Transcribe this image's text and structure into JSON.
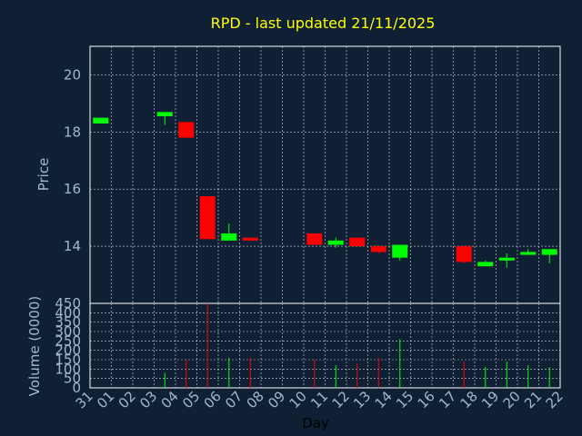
{
  "chart_data": {
    "type": "candlestick",
    "title": "RPD - last updated 21/11/2025",
    "price_axis": {
      "label": "Price",
      "ylim": [
        12.0,
        21.0
      ],
      "ticks": [
        14,
        16,
        18,
        20
      ]
    },
    "volume_axis": {
      "label": "Volume (0000)",
      "ylim": [
        0,
        450
      ],
      "ticks": [
        0,
        50,
        100,
        150,
        200,
        250,
        300,
        350,
        400,
        450
      ]
    },
    "xlabel": "Day",
    "x_tick_labels": [
      "31",
      "01",
      "02",
      "03",
      "04",
      "05",
      "06",
      "07",
      "08",
      "09",
      "10",
      "11",
      "12",
      "13",
      "14",
      "15",
      "16",
      "17",
      "18",
      "19",
      "20",
      "21",
      "22"
    ],
    "grid": true,
    "colors": {
      "up": "#00ff00",
      "down": "#ff0000",
      "background": "#0f2035",
      "grid": "#ffffff",
      "axis": "#ffffff",
      "title": "#ffff00",
      "tick": "#a3b7d0"
    },
    "candles": [
      {
        "day": "31",
        "open": 18.3,
        "high": 18.5,
        "low": 18.3,
        "close": 18.5,
        "volume": 0
      },
      {
        "day": "03",
        "open": 18.55,
        "high": 18.7,
        "low": 18.25,
        "close": 18.7,
        "volume": 80
      },
      {
        "day": "04",
        "open": 18.35,
        "high": 18.35,
        "low": 17.8,
        "close": 17.8,
        "volume": 150
      },
      {
        "day": "05",
        "open": 15.75,
        "high": 15.75,
        "low": 14.25,
        "close": 14.25,
        "volume": 450
      },
      {
        "day": "06",
        "open": 14.2,
        "high": 14.8,
        "low": 14.2,
        "close": 14.45,
        "volume": 160
      },
      {
        "day": "07",
        "open": 14.3,
        "high": 14.3,
        "low": 14.2,
        "close": 14.2,
        "volume": 160
      },
      {
        "day": "10",
        "open": 14.45,
        "high": 14.45,
        "low": 14.05,
        "close": 14.05,
        "volume": 150
      },
      {
        "day": "11",
        "open": 14.05,
        "high": 14.3,
        "low": 13.95,
        "close": 14.2,
        "volume": 120
      },
      {
        "day": "12",
        "open": 14.3,
        "high": 14.3,
        "low": 14.0,
        "close": 14.0,
        "volume": 130
      },
      {
        "day": "13",
        "open": 14.0,
        "high": 14.0,
        "low": 13.75,
        "close": 13.8,
        "volume": 160
      },
      {
        "day": "14",
        "open": 13.6,
        "high": 14.05,
        "low": 13.5,
        "close": 14.05,
        "volume": 260
      },
      {
        "day": "17",
        "open": 14.0,
        "high": 14.0,
        "low": 13.4,
        "close": 13.45,
        "volume": 140
      },
      {
        "day": "18",
        "open": 13.3,
        "high": 13.5,
        "low": 13.3,
        "close": 13.45,
        "volume": 110
      },
      {
        "day": "19",
        "open": 13.5,
        "high": 13.75,
        "low": 13.25,
        "close": 13.6,
        "volume": 140
      },
      {
        "day": "20",
        "open": 13.7,
        "high": 13.9,
        "low": 13.7,
        "close": 13.8,
        "volume": 120
      },
      {
        "day": "21",
        "open": 13.7,
        "high": 13.9,
        "low": 13.4,
        "close": 13.9,
        "volume": 110
      }
    ]
  }
}
